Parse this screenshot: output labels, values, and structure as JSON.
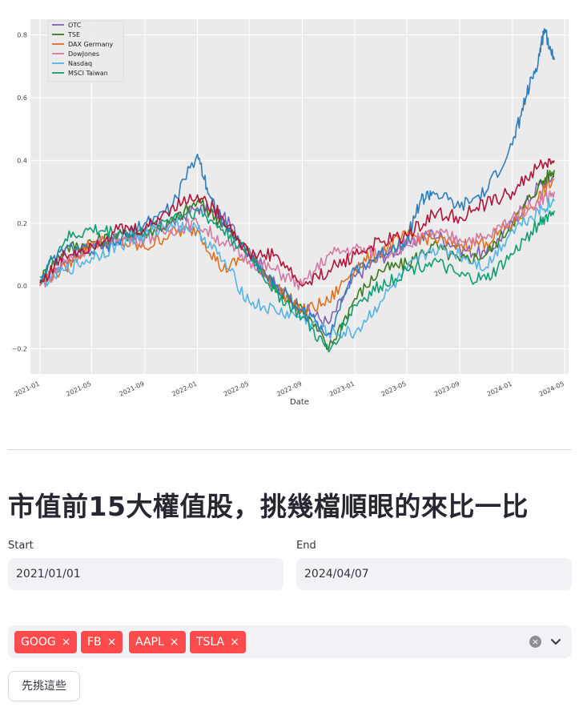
{
  "chart_data": {
    "type": "line",
    "xlabel": "Date",
    "x_tick_labels": [
      "2021-01",
      "2021-05",
      "2021-09",
      "2022-01",
      "2022-05",
      "2022-09",
      "2023-01",
      "2023-05",
      "2023-09",
      "2024-01",
      "2024-05"
    ],
    "y_ticks": [
      -0.2,
      0.0,
      0.2,
      0.4,
      0.6,
      0.8
    ],
    "y_tick_labels": [
      "−0.2",
      "0.0",
      "0.2",
      "0.4",
      "0.6",
      "0.8"
    ],
    "ylim": [
      -0.28,
      0.85
    ],
    "xlim": [
      "2020-12-10",
      "2024-05-10"
    ],
    "grid": true,
    "legend_position": "top-left",
    "legend": [
      "OTC",
      "TSE",
      "DAX Germany",
      "DowJones",
      "Nasdaq",
      "MSCI Taiwan"
    ],
    "series": [
      {
        "name": "OTC",
        "color": "#8062b0",
        "x": [
          "2021-01-01",
          "2021-03-01",
          "2021-05-01",
          "2021-07-01",
          "2021-09-01",
          "2021-11-01",
          "2022-01-01",
          "2022-03-01",
          "2022-05-01",
          "2022-07-01",
          "2022-09-01",
          "2022-11-01",
          "2023-01-01",
          "2023-03-01",
          "2023-05-01",
          "2023-07-01",
          "2023-09-01",
          "2023-11-01",
          "2024-01-01",
          "2024-03-01",
          "2024-04-07"
        ],
        "values": [
          0.0,
          0.08,
          0.13,
          0.15,
          0.17,
          0.2,
          0.25,
          0.22,
          0.12,
          0.0,
          -0.07,
          -0.12,
          0.03,
          0.09,
          0.13,
          0.17,
          0.12,
          0.1,
          0.2,
          0.32,
          0.35
        ]
      },
      {
        "name": "TSE",
        "color": "#3b7a1e",
        "x": [
          "2021-01-01",
          "2021-03-01",
          "2021-05-01",
          "2021-07-01",
          "2021-09-01",
          "2021-11-01",
          "2022-01-01",
          "2022-03-01",
          "2022-05-01",
          "2022-07-01",
          "2022-09-01",
          "2022-11-01",
          "2023-01-01",
          "2023-03-01",
          "2023-05-01",
          "2023-07-01",
          "2023-09-01",
          "2023-11-01",
          "2024-01-01",
          "2024-03-01",
          "2024-04-07"
        ],
        "values": [
          0.02,
          0.12,
          0.14,
          0.16,
          0.17,
          0.2,
          0.27,
          0.2,
          0.1,
          0.0,
          -0.07,
          -0.2,
          -0.04,
          0.05,
          0.07,
          0.13,
          0.08,
          0.1,
          0.2,
          0.32,
          0.37
        ]
      },
      {
        "name": "DAX Germany",
        "color": "#e07020",
        "x": [
          "2021-01-01",
          "2021-03-01",
          "2021-05-01",
          "2021-07-01",
          "2021-09-01",
          "2021-11-01",
          "2022-01-01",
          "2022-03-01",
          "2022-05-01",
          "2022-07-01",
          "2022-09-01",
          "2022-11-01",
          "2023-01-01",
          "2023-03-01",
          "2023-05-01",
          "2023-07-01",
          "2023-09-01",
          "2023-11-01",
          "2024-01-01",
          "2024-03-01",
          "2024-04-07"
        ],
        "values": [
          0.01,
          0.06,
          0.14,
          0.14,
          0.12,
          0.17,
          0.18,
          0.05,
          0.1,
          0.0,
          -0.08,
          -0.05,
          0.06,
          0.11,
          0.16,
          0.15,
          0.13,
          0.14,
          0.2,
          0.28,
          0.34
        ]
      },
      {
        "name": "DowJones",
        "color": "#d27aa3",
        "x": [
          "2021-01-01",
          "2021-03-01",
          "2021-05-01",
          "2021-07-01",
          "2021-09-01",
          "2021-11-01",
          "2022-01-01",
          "2022-03-01",
          "2022-05-01",
          "2022-07-01",
          "2022-09-01",
          "2022-11-01",
          "2023-01-01",
          "2023-03-01",
          "2023-05-01",
          "2023-07-01",
          "2023-09-01",
          "2023-11-01",
          "2024-01-01",
          "2024-03-01",
          "2024-04-07"
        ],
        "values": [
          0.0,
          0.08,
          0.13,
          0.15,
          0.15,
          0.18,
          0.2,
          0.14,
          0.08,
          0.05,
          0.0,
          0.1,
          0.12,
          0.1,
          0.13,
          0.17,
          0.15,
          0.15,
          0.22,
          0.27,
          0.3
        ]
      },
      {
        "name": "Nasdaq",
        "color": "#55b3e6",
        "x": [
          "2021-01-01",
          "2021-03-01",
          "2021-05-01",
          "2021-07-01",
          "2021-09-01",
          "2021-11-01",
          "2022-01-01",
          "2022-03-01",
          "2022-05-01",
          "2022-07-01",
          "2022-09-01",
          "2022-11-01",
          "2023-01-01",
          "2023-03-01",
          "2023-05-01",
          "2023-07-01",
          "2023-09-01",
          "2023-11-01",
          "2024-01-01",
          "2024-03-01",
          "2024-04-07"
        ],
        "values": [
          0.01,
          0.05,
          0.09,
          0.13,
          0.16,
          0.2,
          0.18,
          0.08,
          -0.05,
          -0.08,
          -0.1,
          -0.15,
          -0.15,
          -0.05,
          0.05,
          0.12,
          0.1,
          0.06,
          0.18,
          0.24,
          0.27
        ]
      },
      {
        "name": "MSCI Taiwan",
        "color": "#0f9e74",
        "x": [
          "2021-01-01",
          "2021-03-01",
          "2021-05-01",
          "2021-07-01",
          "2021-09-01",
          "2021-11-01",
          "2022-01-01",
          "2022-03-01",
          "2022-05-01",
          "2022-07-01",
          "2022-09-01",
          "2022-11-01",
          "2023-01-01",
          "2023-03-01",
          "2023-05-01",
          "2023-07-01",
          "2023-09-01",
          "2023-11-01",
          "2024-01-01",
          "2024-03-01",
          "2024-04-07"
        ],
        "values": [
          0.02,
          0.15,
          0.18,
          0.17,
          0.17,
          0.22,
          0.24,
          0.18,
          0.1,
          -0.02,
          -0.1,
          -0.21,
          -0.06,
          0.0,
          0.05,
          0.08,
          0.03,
          0.02,
          0.1,
          0.2,
          0.24
        ]
      },
      {
        "color": "#2f7ebc",
        "x": [
          "2021-01-01",
          "2021-03-01",
          "2021-05-01",
          "2021-07-01",
          "2021-09-01",
          "2021-11-01",
          "2022-01-01",
          "2022-02-01",
          "2022-03-01",
          "2022-05-01",
          "2022-07-01",
          "2022-09-01",
          "2022-11-01",
          "2023-01-01",
          "2023-03-01",
          "2023-05-01",
          "2023-06-01",
          "2023-07-01",
          "2023-09-01",
          "2023-11-01",
          "2024-01-01",
          "2024-02-01",
          "2024-03-01",
          "2024-03-15",
          "2024-04-07"
        ],
        "values": [
          0.03,
          0.12,
          0.11,
          0.14,
          0.2,
          0.25,
          0.42,
          0.28,
          0.2,
          0.1,
          0.0,
          -0.08,
          -0.15,
          0.05,
          0.1,
          0.15,
          0.27,
          0.3,
          0.25,
          0.3,
          0.45,
          0.6,
          0.72,
          0.82,
          0.72
        ]
      },
      {
        "color": "#b01538",
        "x": [
          "2021-01-01",
          "2021-03-01",
          "2021-05-01",
          "2021-07-01",
          "2021-09-01",
          "2021-11-01",
          "2022-01-01",
          "2022-03-01",
          "2022-05-01",
          "2022-07-01",
          "2022-09-01",
          "2022-11-01",
          "2023-01-01",
          "2023-03-01",
          "2023-05-01",
          "2023-07-01",
          "2023-09-01",
          "2023-11-01",
          "2024-01-01",
          "2024-03-01",
          "2024-04-07"
        ],
        "values": [
          0.01,
          0.1,
          0.13,
          0.18,
          0.18,
          0.25,
          0.29,
          0.22,
          0.1,
          0.1,
          0.0,
          0.05,
          0.1,
          0.14,
          0.16,
          0.23,
          0.22,
          0.26,
          0.3,
          0.38,
          0.4
        ]
      }
    ]
  },
  "heading": "市值前15大權值股，挑幾檔順眼的來比一比",
  "start": {
    "label": "Start",
    "value": "2021/01/01"
  },
  "end": {
    "label": "End",
    "value": "2024/04/07"
  },
  "tickers": {
    "tags": [
      "GOOG",
      "FB",
      "AAPL",
      "TSLA"
    ],
    "remove_glyph": "×",
    "clear_glyph": "×",
    "chevron_icon": "chevron-down-icon"
  },
  "submit_button": {
    "label": "先挑這些"
  },
  "colors": {
    "accent": "#ff4b4b",
    "input_bg": "#f0f2f6",
    "plot_bg": "#ebebeb"
  }
}
